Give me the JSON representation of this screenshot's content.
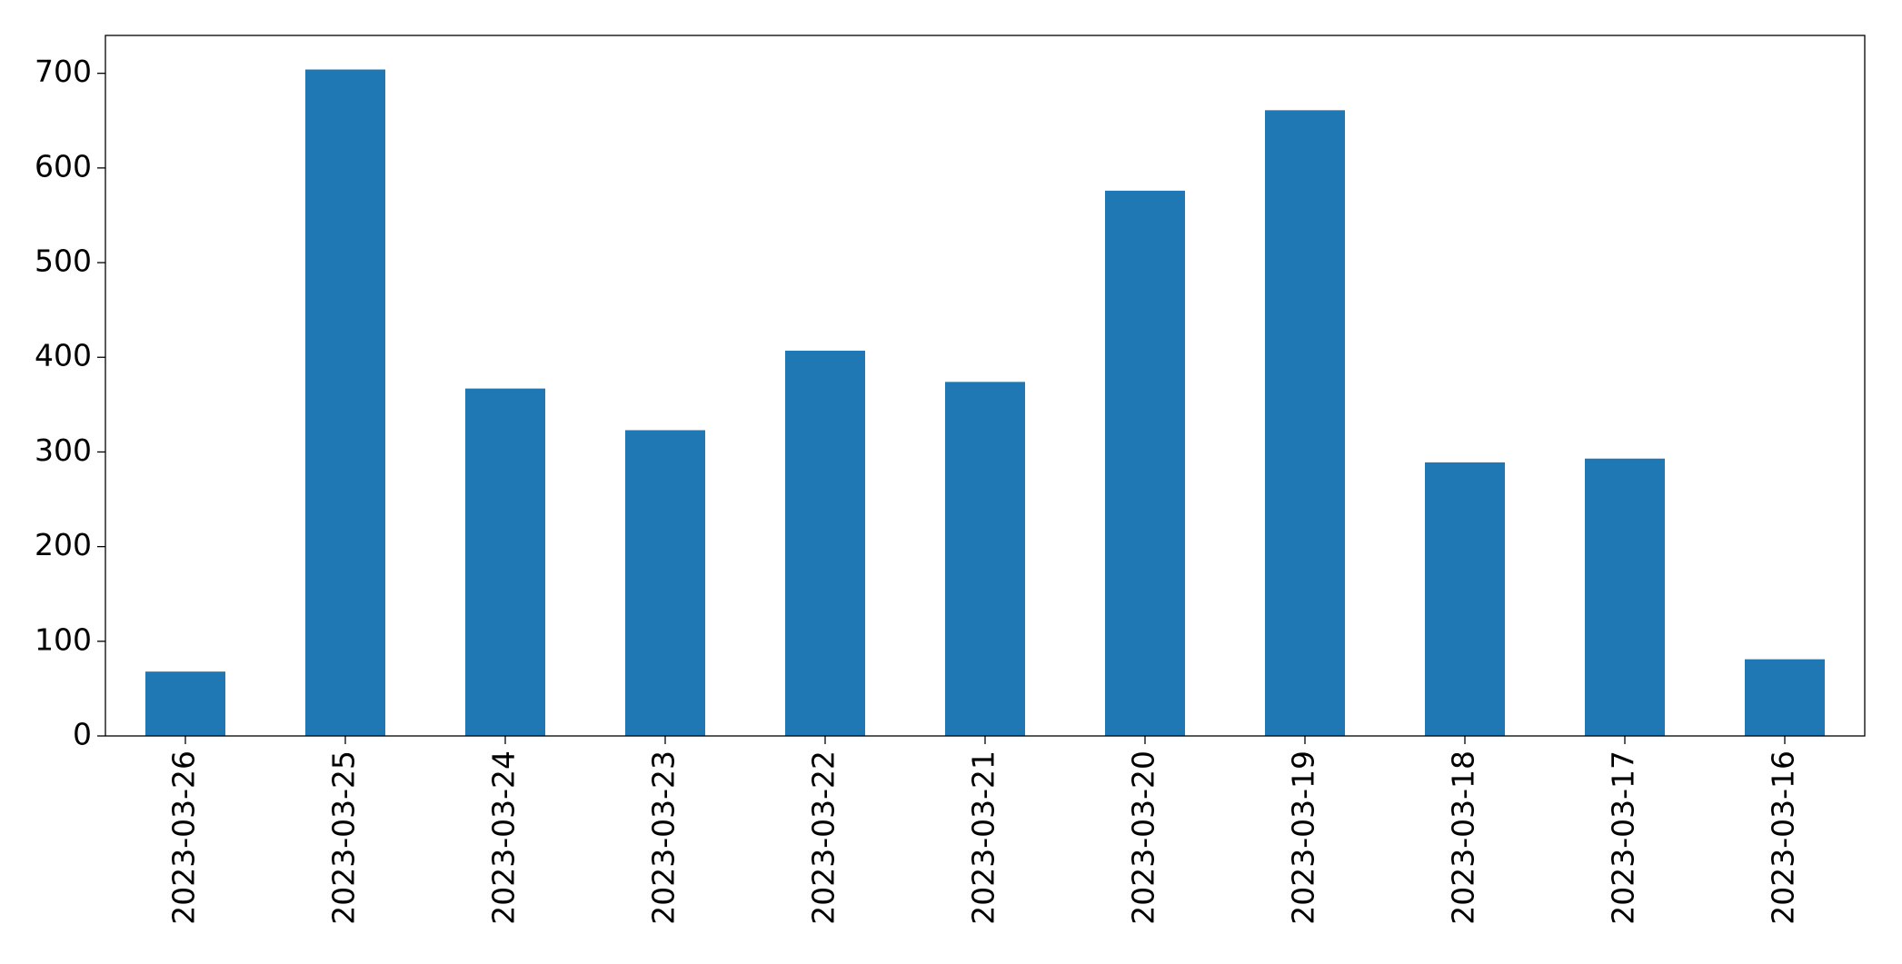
{
  "chart_data": {
    "type": "bar",
    "categories": [
      "2023-03-26",
      "2023-03-25",
      "2023-03-24",
      "2023-03-23",
      "2023-03-22",
      "2023-03-21",
      "2023-03-20",
      "2023-03-19",
      "2023-03-18",
      "2023-03-17",
      "2023-03-16"
    ],
    "values": [
      68,
      704,
      367,
      323,
      407,
      374,
      576,
      661,
      289,
      293,
      81
    ],
    "color": "#1f77b4",
    "ylim": [
      0,
      740
    ],
    "yticks": [
      0,
      100,
      200,
      300,
      400,
      500,
      600,
      700
    ],
    "grid": false
  }
}
